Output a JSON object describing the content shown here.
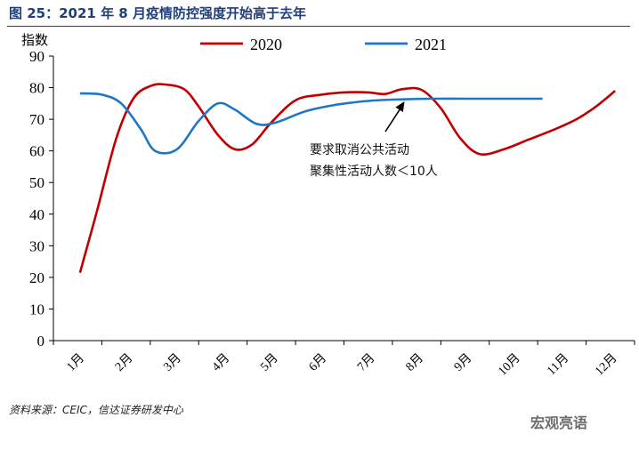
{
  "figure": {
    "title": "图 25：2021 年 8 月疫情防控强度开始高于去年",
    "source": "资料来源：CEIC，信达证券研发中心",
    "watermark": "宏观亮语"
  },
  "chart_data": {
    "type": "line",
    "title": "",
    "ylabel": "指数",
    "xlabel": "",
    "ylim": [
      0,
      90
    ],
    "yticks": [
      0,
      10,
      20,
      30,
      40,
      50,
      60,
      70,
      80,
      90
    ],
    "x_categories": [
      "1月",
      "2月",
      "3月",
      "4月",
      "5月",
      "6月",
      "7月",
      "8月",
      "9月",
      "10月",
      "11月",
      "12月"
    ],
    "legend_position": "top",
    "grid": false,
    "series": [
      {
        "name": "2020",
        "color": "#c00000",
        "x": [
          0.55,
          0.9,
          1.3,
          1.65,
          2.0,
          2.3,
          2.7,
          3.0,
          3.4,
          3.75,
          4.1,
          4.5,
          5.0,
          5.5,
          6.0,
          6.5,
          6.85,
          7.2,
          7.6,
          8.0,
          8.4,
          8.8,
          9.3,
          9.8,
          10.3,
          10.8,
          11.2,
          11.6
        ],
        "values": [
          21.5,
          41,
          64,
          76.5,
          80.5,
          81,
          79.5,
          74,
          65,
          60.5,
          62,
          69,
          76,
          77.7,
          78.5,
          78.5,
          78,
          79.5,
          79.3,
          73.5,
          64,
          59,
          60.5,
          63.5,
          66.5,
          70,
          74,
          79
        ]
      },
      {
        "name": "2021",
        "color": "#1f77c4",
        "x": [
          0.55,
          1.0,
          1.4,
          1.8,
          2.1,
          2.55,
          3.0,
          3.4,
          3.75,
          4.2,
          4.6,
          5.2,
          5.8,
          6.5,
          7.2,
          7.8,
          8.5,
          9.2,
          9.8,
          10.1
        ],
        "values": [
          78.2,
          77.8,
          75,
          67,
          60,
          60.5,
          69.5,
          75,
          73,
          68.5,
          69,
          72.5,
          74.5,
          75.8,
          76.3,
          76.5,
          76.5,
          76.5,
          76.5,
          76.5
        ]
      }
    ],
    "annotation": {
      "lines": [
        "要求取消公共活动",
        "聚集性活动人数＜10人"
      ],
      "points_to": {
        "x": 7.25,
        "y": 76.5
      }
    }
  }
}
